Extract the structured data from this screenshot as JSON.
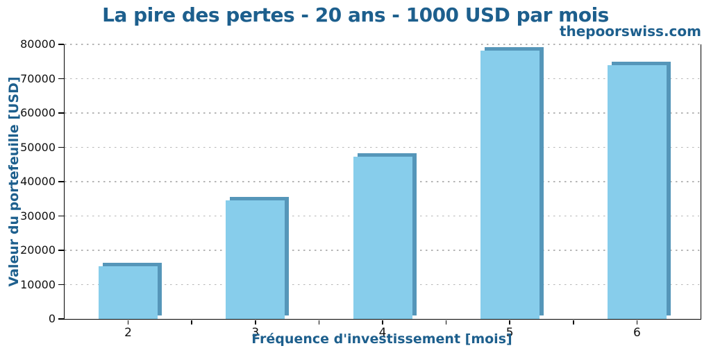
{
  "title": "La pire des pertes - 20 ans - 1000 USD par mois",
  "watermark": "thepoorswiss.com",
  "colors": {
    "accent_text": "#1d5f8d",
    "bar_fill": "#87cdeb",
    "bar_shadow": "#5596b9",
    "gridline": "#b5b5b5",
    "axis": "#000000",
    "tick_text": "#111111",
    "background": "#ffffff"
  },
  "chart_data": {
    "type": "bar",
    "title": "La pire des pertes - 20 ans - 1000 USD par mois",
    "categories": [
      "2",
      "3",
      "4",
      "5",
      "6"
    ],
    "values": [
      15300,
      34500,
      47300,
      78200,
      74000
    ],
    "xlabel": "Fréquence d'investissement [mois]",
    "ylabel": "Valeur du portefeuille [USD]",
    "ylim": [
      0,
      80000
    ],
    "yticks": [
      0,
      10000,
      20000,
      30000,
      40000,
      50000,
      60000,
      70000,
      80000
    ],
    "grid": "horizontal dotted",
    "legend_position": "none",
    "watermark": "thepoorswiss.com",
    "bar_style": "flat fill with 3D shadow offset up-right"
  }
}
